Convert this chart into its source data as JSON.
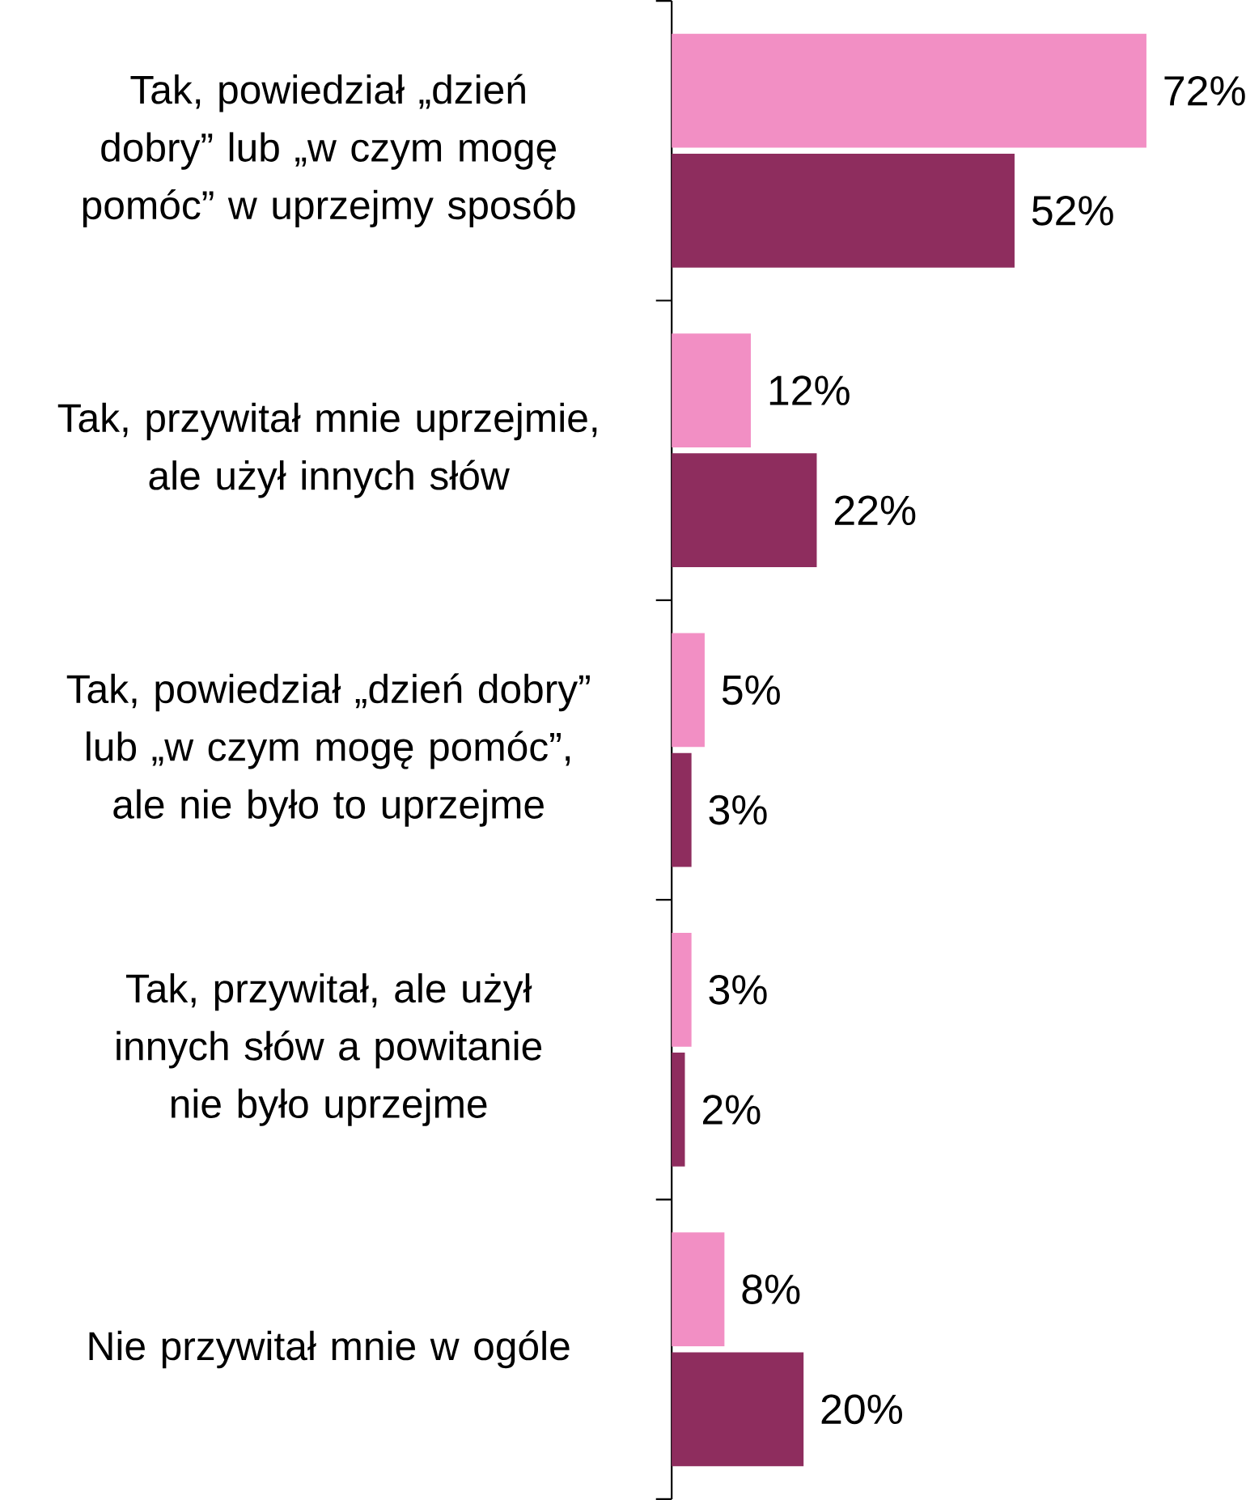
{
  "chart_data": {
    "type": "bar",
    "orientation": "horizontal",
    "categories": [
      "Tak, powiedział „dzień dobry” lub „w czym mogę pomóc” w uprzejmy sposób",
      "Tak, przywitał mnie uprzejmie, ale użył innych słów",
      "Tak, powiedział „dzień dobry” lub „w czym mogę pomóc”, ale nie było to uprzejme",
      "Tak, przywitał, ale użył innych słów a powitanie nie było uprzejme",
      "Nie przywitał mnie w ogóle"
    ],
    "series": [
      {
        "color": "#f28fc4",
        "values": [
          72,
          12,
          5,
          3,
          8
        ],
        "value_labels": [
          "72%",
          "12%",
          "5%",
          "3%",
          "8%"
        ]
      },
      {
        "color": "#8e2d5e",
        "values": [
          52,
          22,
          3,
          2,
          20
        ],
        "value_labels": [
          "52%",
          "22%",
          "3%",
          "2%",
          "20%"
        ]
      }
    ]
  }
}
